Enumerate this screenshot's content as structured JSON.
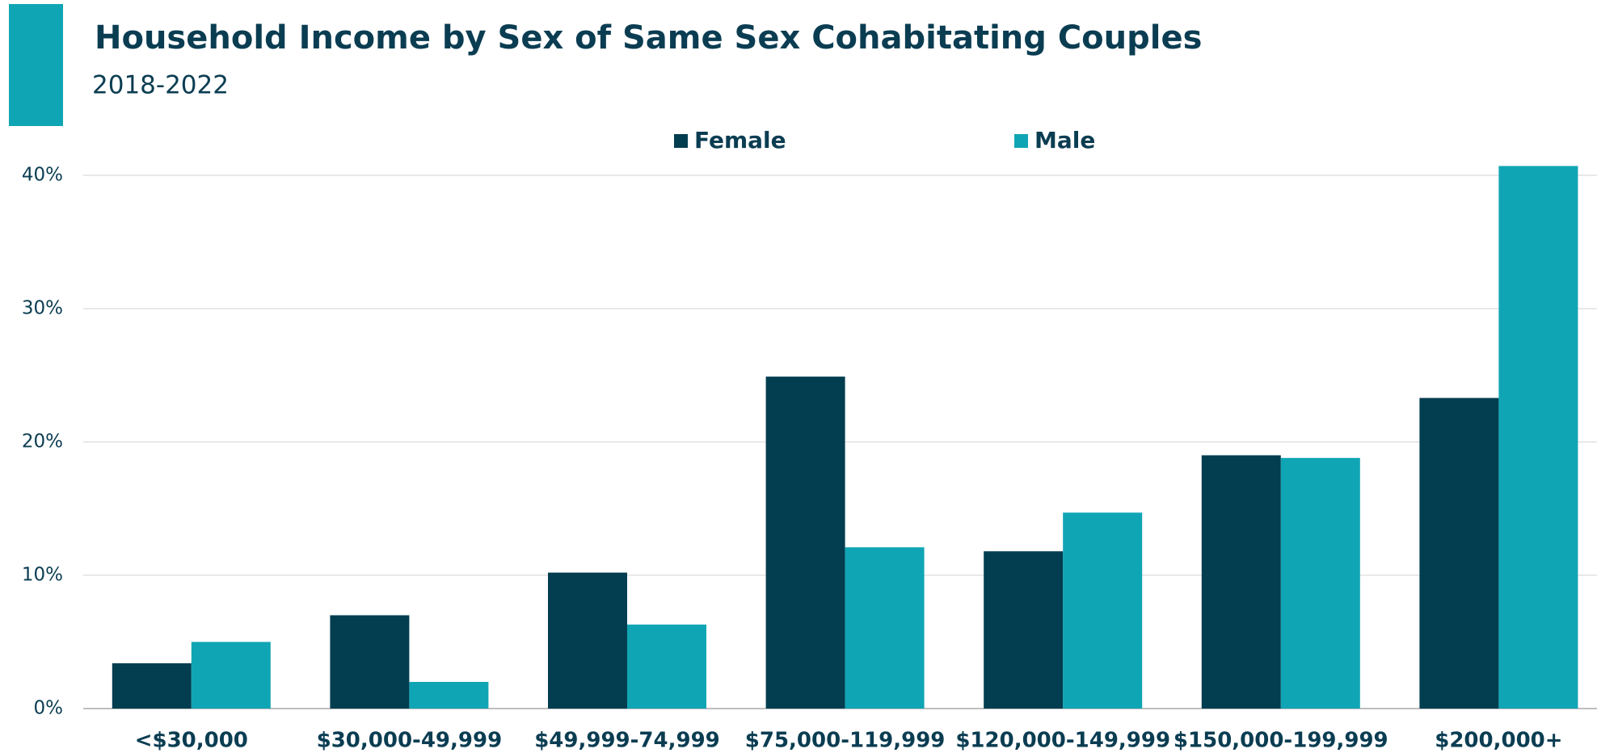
{
  "chart_data": {
    "type": "bar",
    "title": "Household Income by Sex of Same Sex Cohabitating Couples",
    "subtitle": "2018-2022",
    "categories": [
      "<$30,000",
      "$30,000-49,999",
      "$49,999-74,999",
      "$75,000-119,999",
      "$120,000-149,999",
      "$150,000-199,999",
      "$200,000+"
    ],
    "series": [
      {
        "name": "Female",
        "color": "#023d50",
        "values": [
          3.4,
          7.0,
          10.2,
          24.9,
          11.8,
          19.0,
          23.3
        ]
      },
      {
        "name": "Male",
        "color": "#10a5b4",
        "values": [
          5.0,
          2.0,
          6.3,
          12.1,
          14.7,
          18.8,
          40.7
        ]
      }
    ],
    "ylim": [
      0,
      41
    ],
    "yticks": [
      {
        "value": 0,
        "label": "0%"
      },
      {
        "value": 10,
        "label": "10%"
      },
      {
        "value": 20,
        "label": "20%"
      },
      {
        "value": 30,
        "label": "30%"
      },
      {
        "value": 40,
        "label": "40%"
      }
    ],
    "grid": true,
    "legend": "top"
  }
}
